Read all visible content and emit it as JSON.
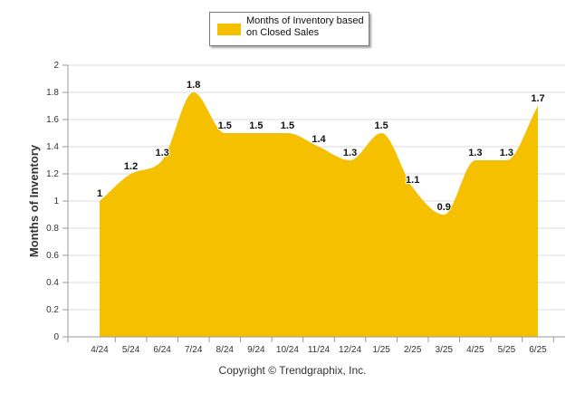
{
  "legend": {
    "label": "Months of Inventory based on Closed Sales"
  },
  "credit": "Copyright © Trendgraphix, Inc.",
  "colors": {
    "area": "#F5C000",
    "grid": "#dcdcdc",
    "axis": "#9a9a9a",
    "text": "#333333"
  },
  "chart_data": {
    "type": "area",
    "title": "",
    "xlabel": "",
    "ylabel": "Months of Inventory",
    "categories": [
      "4/24",
      "5/24",
      "6/24",
      "7/24",
      "8/24",
      "9/24",
      "10/24",
      "11/24",
      "12/24",
      "1/25",
      "2/25",
      "3/25",
      "4/25",
      "5/25",
      "6/25"
    ],
    "series": [
      {
        "name": "Months of Inventory based on Closed Sales",
        "values": [
          1,
          1.2,
          1.3,
          1.8,
          1.5,
          1.5,
          1.5,
          1.4,
          1.3,
          1.5,
          1.1,
          0.9,
          1.3,
          1.3,
          1.7
        ]
      }
    ],
    "ylim": [
      0,
      2
    ],
    "yticks": [
      "0",
      "0.2",
      "0.4",
      "0.6",
      "0.8",
      "1",
      "1.2",
      "1.4",
      "1.6",
      "1.8",
      "2"
    ],
    "grid": true,
    "legend_position": "top-center"
  }
}
